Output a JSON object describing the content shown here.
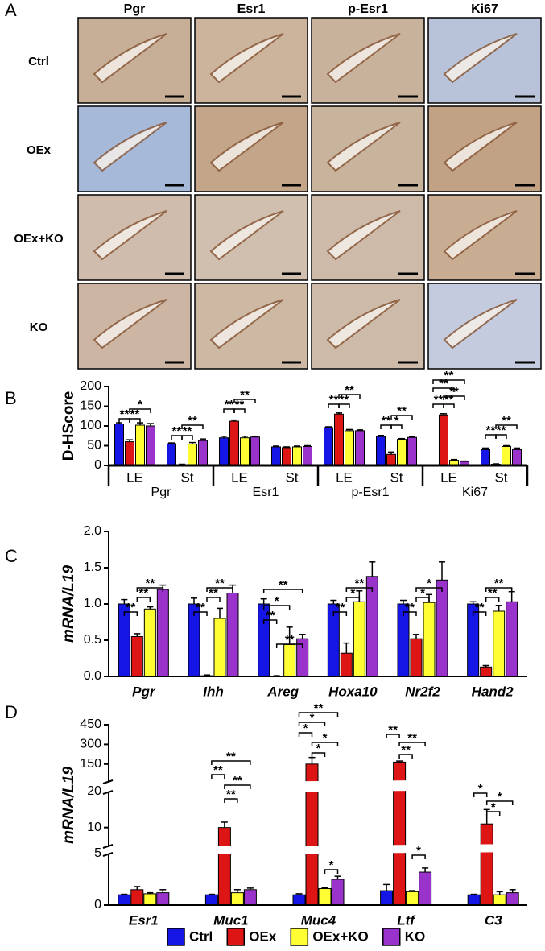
{
  "panel_labels": [
    "A",
    "B",
    "C",
    "D"
  ],
  "panel_a": {
    "columns": [
      "Pgr",
      "Esr1",
      "p-Esr1",
      "Ki67"
    ],
    "rows": [
      "Ctrl",
      "OEx",
      "OEx+KO",
      "KO"
    ]
  },
  "chart_data": [
    {
      "type": "bar",
      "ylabel": "D-HScore",
      "categories": [
        "LE",
        "St",
        "LE",
        "St",
        "LE",
        "St",
        "LE",
        "St"
      ],
      "groups": [
        "Pgr",
        "Esr1",
        "p-Esr1",
        "Ki67"
      ],
      "ylim": [
        0,
        200
      ],
      "yticks": [
        0,
        50,
        100,
        150,
        200
      ],
      "series": [
        {
          "color": "#1515e6",
          "values": [
            105,
            55,
            70,
            47,
            96,
            73,
            1,
            40
          ],
          "errors": [
            3,
            2,
            4,
            2,
            2,
            3,
            0.5,
            4
          ]
        },
        {
          "color": "#dd1515",
          "values": [
            60,
            2,
            112,
            45,
            130,
            28,
            128,
            3
          ],
          "errors": [
            5,
            1,
            3,
            2,
            3,
            6,
            3,
            1
          ]
        },
        {
          "color": "#ffff33",
          "values": [
            102,
            54,
            70,
            47,
            88,
            66,
            13,
            48
          ],
          "errors": [
            6,
            4,
            4,
            2,
            3,
            2,
            2,
            2
          ]
        },
        {
          "color": "#9933cc",
          "values": [
            100,
            63,
            72,
            48,
            88,
            71,
            10,
            40
          ],
          "errors": [
            6,
            4,
            2,
            2,
            2,
            2,
            1,
            4
          ]
        }
      ],
      "annotations": [
        "**",
        "**",
        "*",
        "**",
        "**",
        "**",
        "**",
        "**",
        "**",
        "**",
        "**",
        "**",
        "**",
        "*",
        "**",
        "**",
        "**",
        "**",
        "**",
        "**",
        "**",
        "**",
        "**"
      ]
    },
    {
      "type": "bar",
      "ylabel": "mRNA/L19",
      "categories": [
        "Pgr",
        "Ihh",
        "Areg",
        "Hoxa10",
        "Nr2f2",
        "Hand2"
      ],
      "ylim": [
        0,
        2
      ],
      "yticks": [
        {
          "value": 0,
          "label": "0.0"
        },
        0.5,
        {
          "value": 1,
          "label": "1.0"
        },
        1.5,
        {
          "value": 2,
          "label": "2.0"
        }
      ],
      "series": [
        {
          "color": "#1515e6",
          "values": [
            1,
            1,
            1,
            1,
            1,
            1
          ],
          "errors": [
            0.06,
            0.08,
            0.07,
            0.05,
            0.05,
            0.03
          ]
        },
        {
          "color": "#dd1515",
          "values": [
            0.55,
            0.01,
            0,
            0.32,
            0.52,
            0.13
          ],
          "errors": [
            0.04,
            0.01,
            0.01,
            0.14,
            0.06,
            0.02
          ]
        },
        {
          "color": "#ffff33",
          "values": [
            0.93,
            0.8,
            0.44,
            1.03,
            1.02,
            0.9
          ],
          "errors": [
            0.03,
            0.14,
            0.24,
            0.15,
            0.11,
            0.08
          ]
        },
        {
          "color": "#9933cc",
          "values": [
            1.2,
            1.15,
            0.52,
            1.38,
            1.33,
            1.03
          ],
          "errors": [
            0.06,
            0.11,
            0.06,
            0.2,
            0.25,
            0.14
          ]
        }
      ],
      "annotations": [
        "**",
        "**",
        "**",
        "**",
        "**",
        "**",
        "**",
        "*",
        "**",
        "**",
        "**",
        "*",
        "**",
        "**",
        "*",
        "*",
        "**",
        "**",
        "**"
      ]
    },
    {
      "type": "bar",
      "ylabel": "mRNA/L19",
      "categories": [
        "Esr1",
        "Muc1",
        "Muc4",
        "Ltf",
        "C3"
      ],
      "ylim": [
        [
          0,
          5
        ],
        [
          5,
          20
        ],
        [
          20,
          450
        ]
      ],
      "yticks": [
        0,
        5,
        10,
        20,
        150,
        300,
        450
      ],
      "legend": "bottom",
      "series": [
        {
          "name": "Ctrl",
          "color": "#1515e6",
          "values": [
            1,
            1,
            1,
            1.4,
            1
          ],
          "errors": [
            0.05,
            0.05,
            0.1,
            0.6,
            0.05
          ]
        },
        {
          "name": "OEx",
          "color": "#dd1515",
          "values": [
            1.5,
            10,
            150,
            165,
            11
          ],
          "errors": [
            0.3,
            1.5,
            50,
            8,
            4
          ]
        },
        {
          "name": "OEx+KO",
          "color": "#ffff33",
          "values": [
            1.1,
            1.2,
            1.6,
            1.3,
            1
          ],
          "errors": [
            0.1,
            0.3,
            0.1,
            0.1,
            0.3
          ]
        },
        {
          "name": "KO",
          "color": "#9933cc",
          "values": [
            1.2,
            1.5,
            2.5,
            3.2,
            1.2
          ],
          "errors": [
            0.3,
            0.15,
            0.3,
            0.4,
            0.3
          ]
        }
      ],
      "annotations": [
        "**",
        "**",
        "**",
        "**",
        "**",
        "*",
        "*",
        "*",
        "*",
        "*",
        "**",
        "**",
        "**",
        "*",
        "*",
        "*",
        "*"
      ]
    }
  ]
}
